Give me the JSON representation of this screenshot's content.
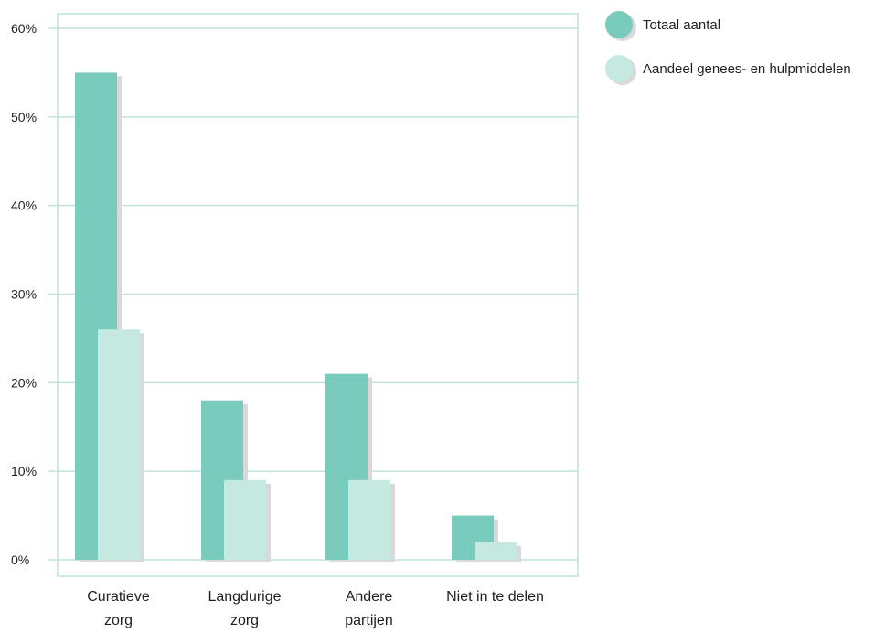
{
  "chart_data": {
    "type": "bar",
    "title": "",
    "xlabel": "",
    "ylabel": "",
    "ylim": [
      0,
      60
    ],
    "yticks": [
      0,
      10,
      20,
      30,
      40,
      50,
      60
    ],
    "ytick_labels": [
      "0%",
      "10%",
      "20%",
      "30%",
      "40%",
      "50%",
      "60%"
    ],
    "grid": true,
    "legend_position": "top-right",
    "categories": [
      [
        "Curatieve",
        "zorg"
      ],
      [
        "Langdurige",
        "zorg"
      ],
      [
        "Andere",
        "partijen"
      ],
      [
        "Niet in te delen"
      ]
    ],
    "series": [
      {
        "name": "Totaal aantal",
        "color": "#78cbbd",
        "values": [
          55,
          18,
          21,
          5
        ]
      },
      {
        "name": "Aandeel genees- en hulpmiddelen",
        "color": "#c5e9e1",
        "values": [
          26,
          9,
          9,
          2
        ]
      }
    ],
    "colors": {
      "grid": "#bfe3dc",
      "frame": "#bfe3dc",
      "shadow": "#d9d9d9"
    }
  }
}
